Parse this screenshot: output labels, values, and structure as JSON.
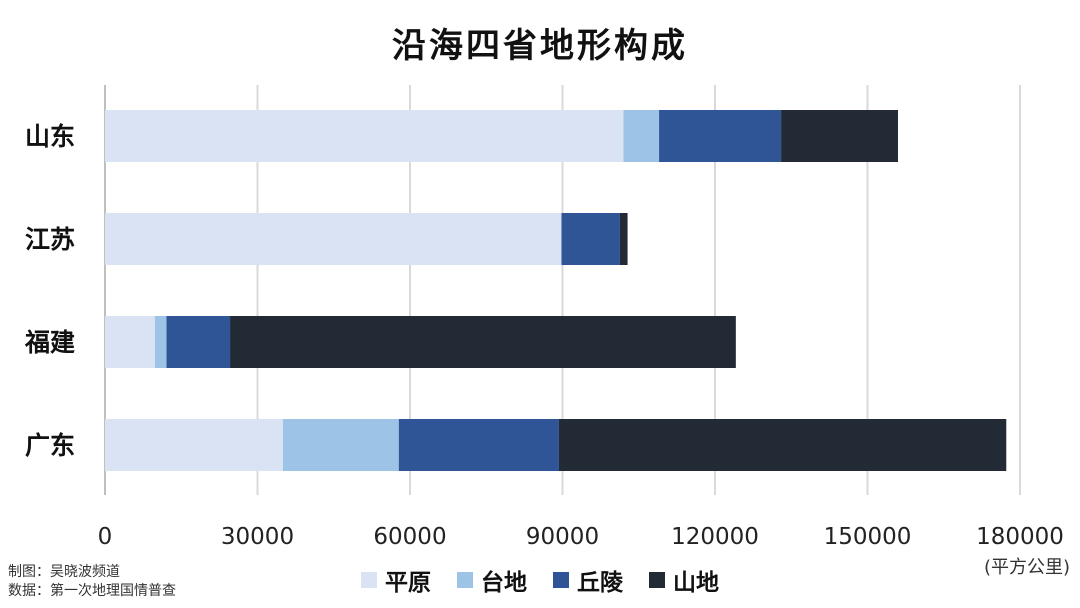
{
  "chart_data": {
    "type": "bar",
    "orientation": "horizontal",
    "stacked": true,
    "title": "沿海四省地形构成",
    "categories": [
      "山东",
      "江苏",
      "福建",
      "广东"
    ],
    "series": [
      {
        "name": "平原",
        "color": "#dae3f3",
        "values": [
          102000,
          89800,
          9800,
          35000
        ]
      },
      {
        "name": "台地",
        "color": "#9dc3e6",
        "values": [
          7000,
          0,
          2300,
          22800
        ]
      },
      {
        "name": "丘陵",
        "color": "#2f5597",
        "values": [
          24000,
          11500,
          12500,
          31500
        ]
      },
      {
        "name": "山地",
        "color": "#222a35",
        "values": [
          23000,
          1500,
          99500,
          88000
        ]
      }
    ],
    "xlim": [
      0,
      180000
    ],
    "xticks": [
      "0",
      "30000",
      "60000",
      "90000",
      "120000",
      "150000",
      "180000"
    ],
    "xlabel": "(平方公里)",
    "grid": true,
    "legend_position": "bottom"
  },
  "credits": {
    "line1": "制图：吴晓波频道",
    "line2": "数据：第一次地理国情普查"
  }
}
